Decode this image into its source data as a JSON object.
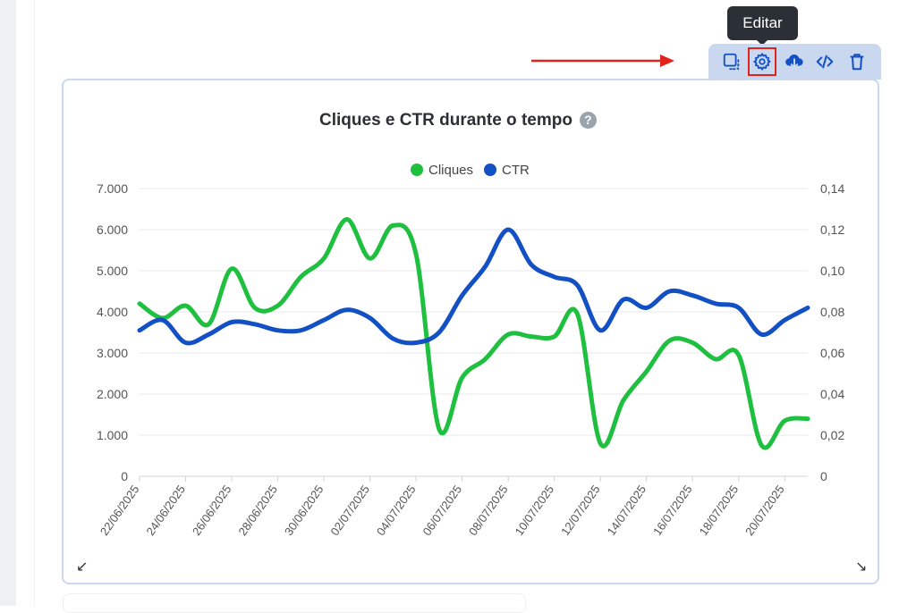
{
  "tooltip": {
    "label": "Editar"
  },
  "toolbar": {
    "buttons": [
      {
        "name": "select-icon"
      },
      {
        "name": "settings-icon",
        "active": true
      },
      {
        "name": "download-cloud-icon"
      },
      {
        "name": "code-icon"
      },
      {
        "name": "trash-icon"
      }
    ]
  },
  "colors": {
    "cliques": "#1fbf3f",
    "ctr": "#1250c4",
    "highlight": "#e0241b"
  },
  "chart_data": {
    "type": "line",
    "title": "Cliques e CTR durante o tempo",
    "legend_position": "top-center",
    "grid": true,
    "x_tick_labels": [
      "22/06/2025",
      "24/06/2025",
      "26/06/2025",
      "28/06/2025",
      "30/06/2025",
      "02/07/2025",
      "04/07/2025",
      "06/07/2025",
      "08/07/2025",
      "10/07/2025",
      "12/07/2025",
      "14/07/2025",
      "16/07/2025",
      "18/07/2025",
      "20/07/2025"
    ],
    "x": [
      "22/06/2025",
      "23/06/2025",
      "24/06/2025",
      "25/06/2025",
      "26/06/2025",
      "27/06/2025",
      "28/06/2025",
      "29/06/2025",
      "30/06/2025",
      "01/07/2025",
      "02/07/2025",
      "03/07/2025",
      "04/07/2025",
      "05/07/2025",
      "06/07/2025",
      "07/07/2025",
      "08/07/2025",
      "09/07/2025",
      "10/07/2025",
      "11/07/2025",
      "12/07/2025",
      "13/07/2025",
      "14/07/2025",
      "15/07/2025",
      "16/07/2025",
      "17/07/2025",
      "18/07/2025",
      "19/07/2025",
      "20/07/2025",
      "21/07/2025"
    ],
    "y_left": {
      "ticks": [
        "0",
        "1.000",
        "2.000",
        "3.000",
        "4.000",
        "5.000",
        "6.000",
        "7.000"
      ],
      "ylim": [
        0,
        7000
      ]
    },
    "y_right": {
      "ticks": [
        "0",
        "0,02",
        "0,04",
        "0,06",
        "0,08",
        "0,10",
        "0,12",
        "0,14"
      ],
      "ylim": [
        0,
        0.14
      ]
    },
    "series": [
      {
        "name": "Cliques",
        "axis": "left",
        "values": [
          4200,
          3850,
          4150,
          3700,
          5050,
          4100,
          4150,
          4850,
          5300,
          6250,
          5300,
          6100,
          5400,
          1150,
          2400,
          2850,
          3450,
          3400,
          3400,
          3950,
          800,
          1850,
          2550,
          3300,
          3250,
          2850,
          2950,
          750,
          1350,
          1400
        ]
      },
      {
        "name": "CTR",
        "axis": "right",
        "values": [
          0.071,
          0.076,
          0.065,
          0.069,
          0.075,
          0.074,
          0.071,
          0.071,
          0.076,
          0.081,
          0.077,
          0.067,
          0.065,
          0.07,
          0.088,
          0.102,
          0.12,
          0.103,
          0.097,
          0.093,
          0.071,
          0.086,
          0.082,
          0.09,
          0.088,
          0.084,
          0.082,
          0.069,
          0.076,
          0.082
        ]
      }
    ]
  }
}
